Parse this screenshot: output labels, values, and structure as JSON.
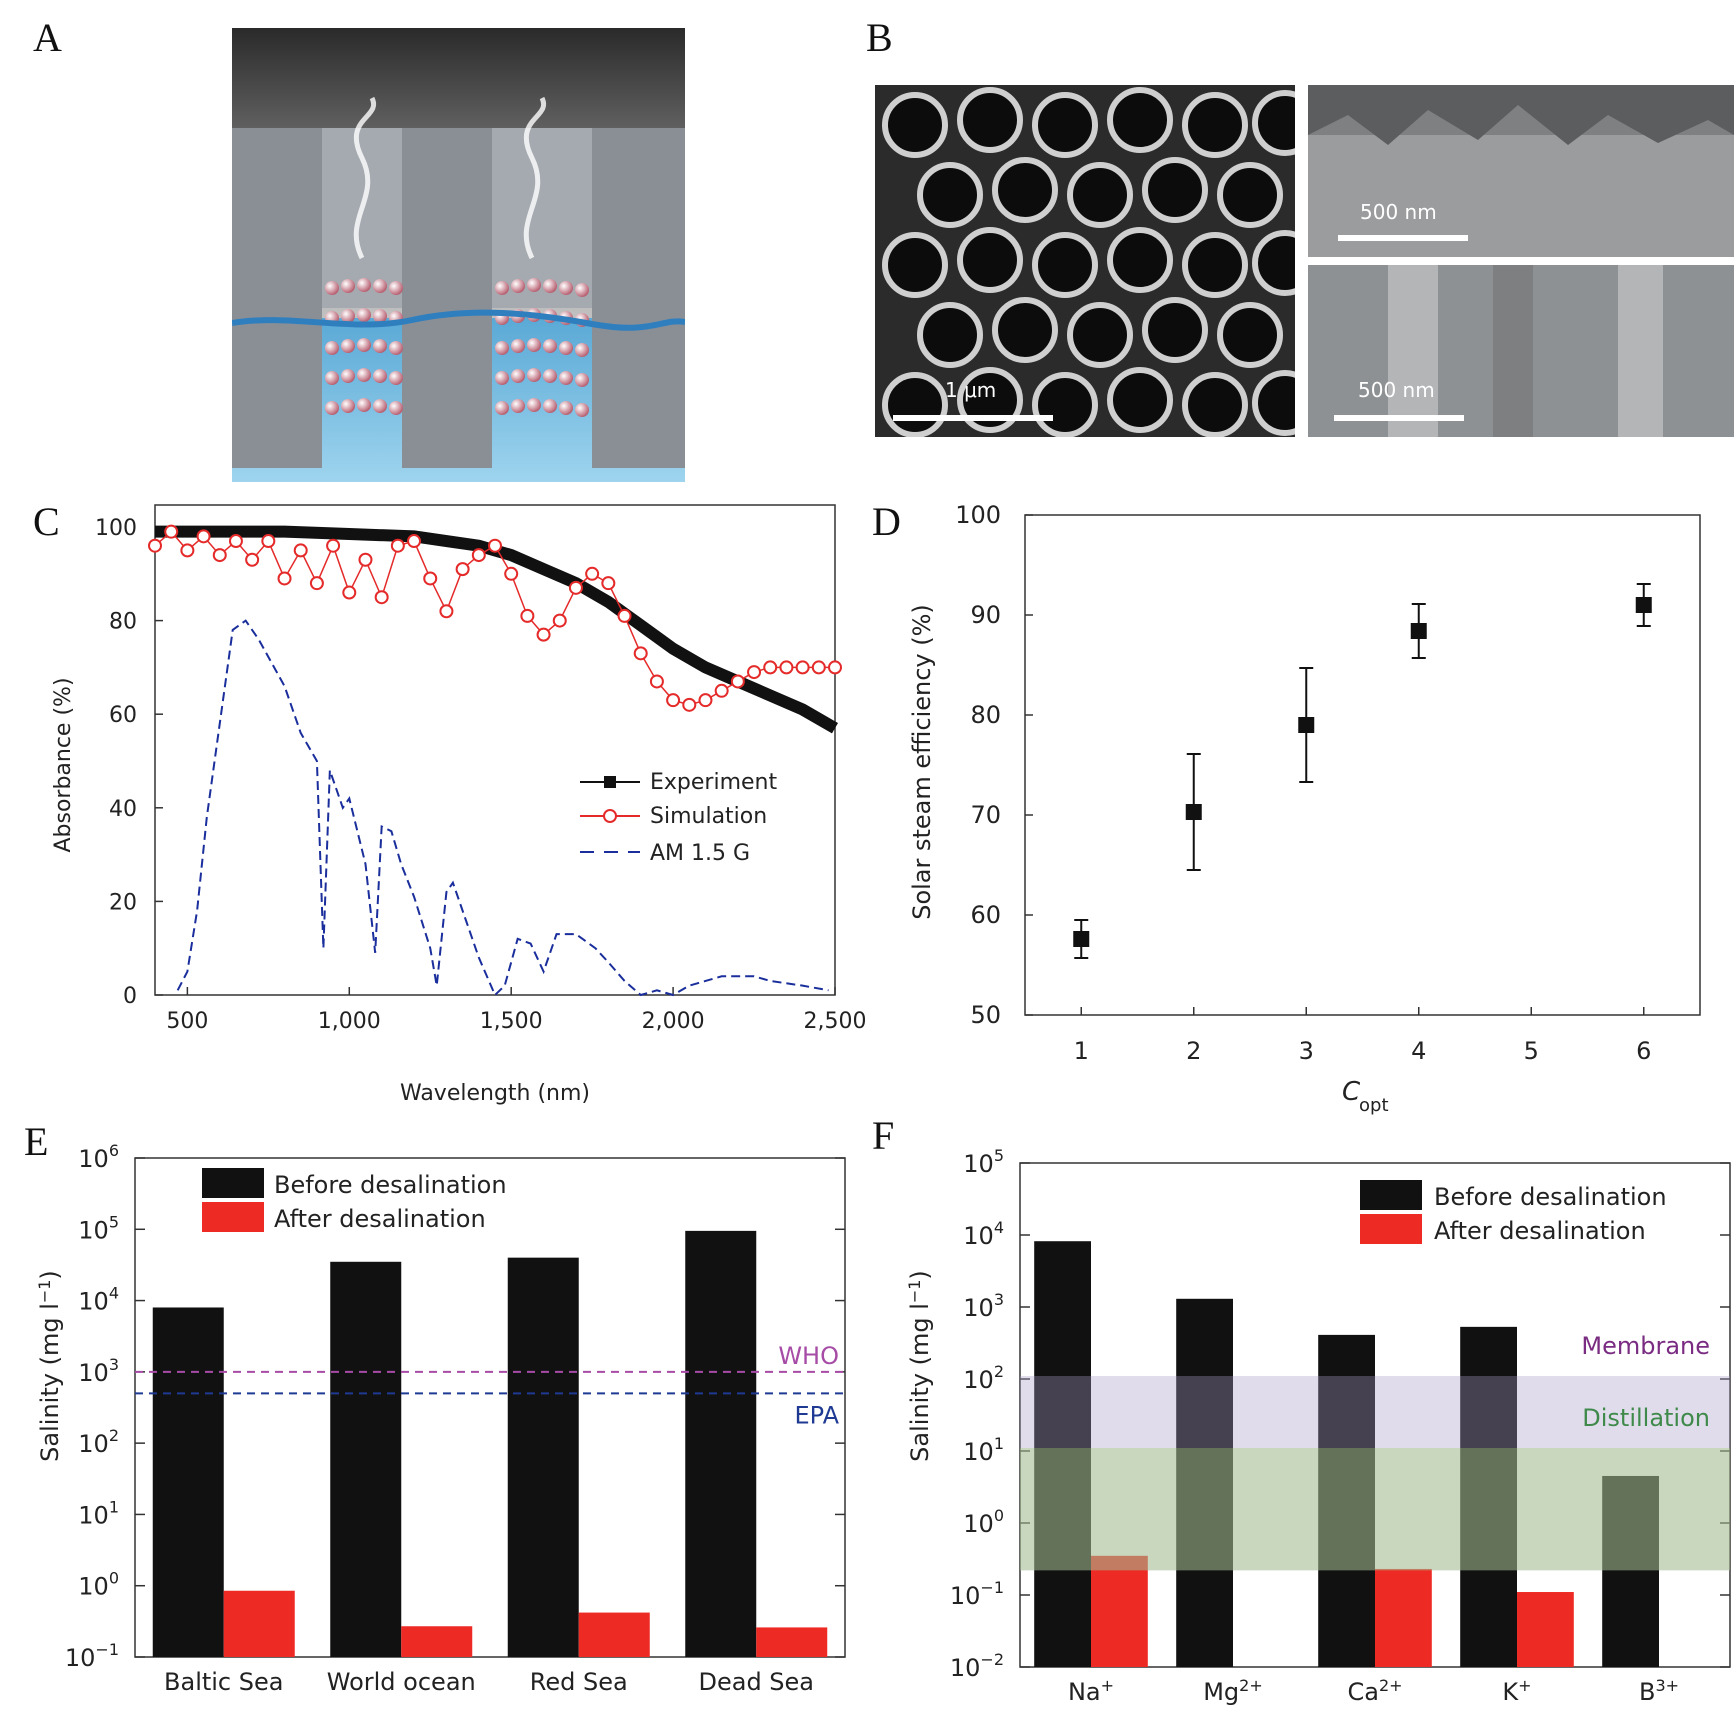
{
  "panels": {
    "a": "A",
    "b": "B",
    "c": "C",
    "d": "D",
    "e": "E",
    "f": "F"
  },
  "micrographs": {
    "scale_1": "1 μm",
    "scale_2": "500 nm",
    "scale_3": "500 nm"
  },
  "chart_data": [
    {
      "id": "C",
      "type": "line",
      "xlabel": "Wavelength (nm)",
      "ylabel": "Absorbance (%)",
      "xlim": [
        400,
        2500
      ],
      "ylim": [
        0,
        100
      ],
      "xticks": [
        500,
        1000,
        1500,
        2000,
        2500
      ],
      "xtick_labels": [
        "500",
        "1,000",
        "1,500",
        "2,000",
        "2,500"
      ],
      "yticks": [
        0,
        20,
        40,
        60,
        80,
        100
      ],
      "legend": {
        "experiment": "Experiment",
        "simulation": "Simulation",
        "am": "AM 1.5 G"
      },
      "series": [
        {
          "name": "Experiment",
          "x": [
            400,
            600,
            800,
            1000,
            1200,
            1300,
            1400,
            1500,
            1600,
            1700,
            1800,
            1900,
            2000,
            2100,
            2200,
            2300,
            2400,
            2500
          ],
          "y": [
            99,
            99,
            99,
            98.5,
            98,
            97,
            96,
            94,
            91,
            88,
            84,
            79,
            74,
            70,
            67,
            64,
            61,
            57
          ]
        },
        {
          "name": "Simulation",
          "x": [
            400,
            450,
            500,
            550,
            600,
            650,
            700,
            750,
            800,
            850,
            900,
            950,
            1000,
            1050,
            1100,
            1150,
            1200,
            1250,
            1300,
            1350,
            1400,
            1450,
            1500,
            1550,
            1600,
            1650,
            1700,
            1750,
            1800,
            1850,
            1900,
            1950,
            2000,
            2050,
            2100,
            2150,
            2200,
            2250,
            2300,
            2350,
            2400,
            2450,
            2500
          ],
          "y": [
            96,
            99,
            95,
            98,
            94,
            97,
            93,
            97,
            89,
            95,
            88,
            96,
            86,
            93,
            85,
            96,
            97,
            89,
            82,
            91,
            94,
            96,
            90,
            81,
            77,
            80,
            87,
            90,
            88,
            81,
            73,
            67,
            63,
            62,
            63,
            65,
            67,
            69,
            70,
            70,
            70,
            70,
            70
          ]
        },
        {
          "name": "AM 1.5 G",
          "x": [
            470,
            500,
            530,
            560,
            600,
            640,
            680,
            720,
            760,
            800,
            850,
            900,
            920,
            940,
            980,
            1000,
            1050,
            1080,
            1100,
            1130,
            1160,
            1200,
            1250,
            1270,
            1300,
            1320,
            1360,
            1400,
            1450,
            1480,
            1520,
            1560,
            1600,
            1640,
            1700,
            1760,
            1800,
            1850,
            1900,
            1950,
            2000,
            2050,
            2100,
            2150,
            2200,
            2250,
            2300,
            2400,
            2480
          ],
          "y": [
            1,
            5,
            18,
            38,
            58,
            78,
            80,
            76,
            71,
            66,
            56,
            50,
            10,
            48,
            40,
            42,
            28,
            9,
            36,
            35,
            28,
            21,
            10,
            2,
            22,
            24,
            16,
            8,
            0,
            2,
            12,
            11,
            5,
            13,
            13,
            10,
            7,
            3,
            0,
            1,
            0,
            2,
            3,
            4,
            4,
            4,
            3,
            2,
            1
          ]
        }
      ]
    },
    {
      "id": "D",
      "type": "scatter",
      "xlabel": "C",
      "xlabel_sub": "opt",
      "ylabel": "Solar steam efficiency (%)",
      "xlim": [
        0.5,
        6.5
      ],
      "ylim": [
        50,
        100
      ],
      "xticks": [
        1,
        2,
        3,
        4,
        5,
        6
      ],
      "yticks": [
        50,
        60,
        70,
        80,
        90,
        100
      ],
      "x": [
        1,
        2,
        3,
        4,
        6
      ],
      "y": [
        57.6,
        70.3,
        79,
        88.4,
        91
      ],
      "err": [
        1.9,
        5.8,
        5.7,
        2.7,
        2.1
      ]
    },
    {
      "id": "E",
      "type": "bar",
      "scale": "log",
      "ylabel": "Salinity (mg l",
      "ylabel_sup": "−1",
      "categories": [
        "Baltic Sea",
        "World ocean",
        "Red Sea",
        "Dead Sea"
      ],
      "ylim_exp": [
        -1,
        6
      ],
      "series": [
        {
          "name": "Before desalination",
          "values": [
            8000,
            35000,
            40000,
            95000
          ]
        },
        {
          "name": "After desalination",
          "values": [
            0.85,
            0.27,
            0.42,
            0.26
          ]
        }
      ],
      "lines": [
        {
          "label": "WHO",
          "value": 1000,
          "color": "#a64ca6"
        },
        {
          "label": "EPA",
          "value": 500,
          "color": "#1f3a93"
        }
      ]
    },
    {
      "id": "F",
      "type": "bar",
      "scale": "log",
      "ylabel": "Salinity (mg l",
      "ylabel_sup": "−1",
      "categories": [
        "Na",
        "Mg",
        "Ca",
        "K",
        "B"
      ],
      "category_sups": [
        "+",
        "2+",
        "2+",
        "+",
        "3+"
      ],
      "ylim_exp": [
        -2,
        5
      ],
      "series": [
        {
          "name": "Before desalination",
          "values": [
            8200,
            1300,
            410,
            530,
            4.5
          ]
        },
        {
          "name": "After desalination",
          "values": [
            0.35,
            0.01,
            0.23,
            0.11,
            0.01
          ]
        }
      ],
      "bands": [
        {
          "label": "Membrane",
          "lo": 0.22,
          "hi": 110,
          "color": "#a99ac8"
        },
        {
          "label": "Distillation",
          "lo": 0.22,
          "hi": 11,
          "color": "#9fcf6a"
        }
      ]
    }
  ]
}
